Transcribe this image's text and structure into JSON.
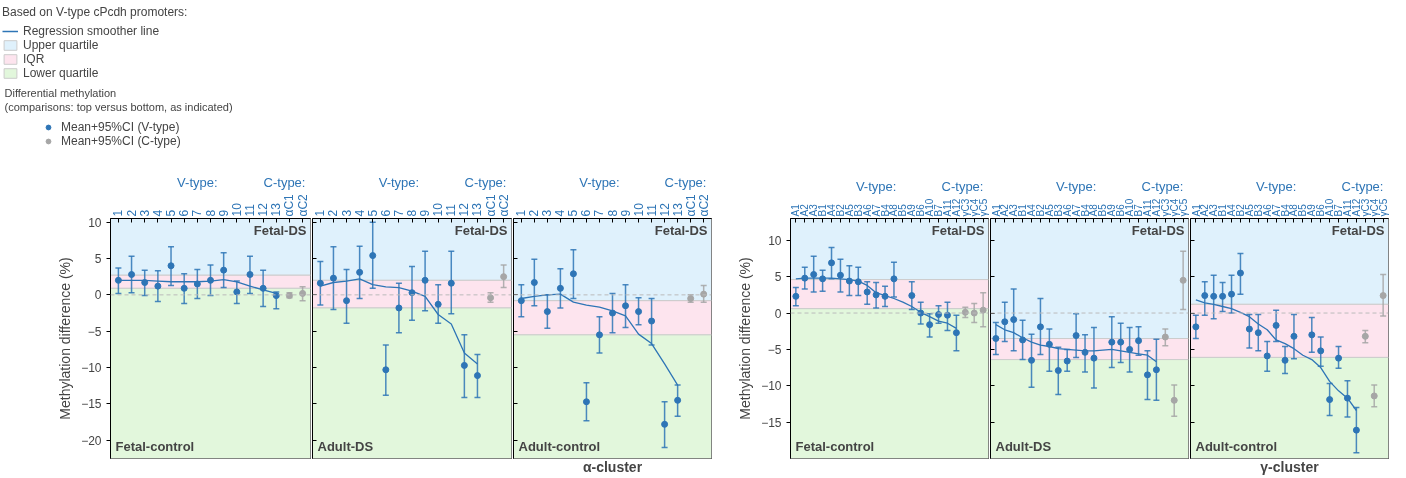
{
  "chart_data": [
    {
      "type": "scatter",
      "categories": [
        "1",
        "2",
        "3",
        "4",
        "5",
        "6",
        "7",
        "8",
        "9",
        "10",
        "11",
        "12",
        "13",
        "αC1",
        "αC2"
      ],
      "ylim": [
        -22.5,
        10.5
      ],
      "yticks": [
        10,
        5,
        0,
        -5,
        -10,
        -15,
        -20
      ],
      "ylabel": "Methylation difference (%)",
      "grid": false,
      "marker": "circle",
      "legend": "top left",
      "legend_title": "Based on V-type cPcdh promoters:",
      "annotations": [
        "Fetal-DS",
        "Fetal-control",
        "V-type:",
        "C-type:",
        "Differential methylation",
        "(comparisons: top versus bottom, as indicated)"
      ],
      "ref_lines": [
        {
          "axis": "y",
          "value": 0,
          "color": "#bbbbbb",
          "line_style": "dashed"
        }
      ],
      "bands": [
        {
          "axis": "y",
          "from": 2.7,
          "to": 10.5,
          "label": "Upper quartile",
          "color": "#dff1fc"
        },
        {
          "axis": "y",
          "from": 0.9,
          "to": 2.7,
          "label": "IQR",
          "color": "#fde4ee"
        },
        {
          "axis": "y",
          "from": -22.5,
          "to": 0.9,
          "label": "Lower quartile",
          "color": "#e2f7dc"
        }
      ],
      "series": [
        {
          "name": "Mean+95%CI (V-type)",
          "color": "#2e75b6",
          "values": [
            2.0,
            2.8,
            1.7,
            1.2,
            4.0,
            0.9,
            1.5,
            2.0,
            3.4,
            0.4,
            2.8,
            0.9,
            -0.1,
            null,
            null
          ],
          "errors": [
            [
              0.2,
              3.7
            ],
            [
              0.3,
              5.3
            ],
            [
              -0.1,
              3.4
            ],
            [
              -0.9,
              3.3
            ],
            [
              1.3,
              6.6
            ],
            [
              -1.2,
              2.9
            ],
            [
              -0.5,
              3.5
            ],
            [
              -0.1,
              4.1
            ],
            [
              1.0,
              5.8
            ],
            [
              -1.2,
              1.9
            ],
            [
              0.2,
              5.3
            ],
            [
              -1.6,
              3.4
            ],
            [
              -1.9,
              0.4
            ],
            null,
            null
          ]
        },
        {
          "name": "Mean+95%CI (C-type)",
          "color": "#a6a6a6",
          "values": [
            null,
            null,
            null,
            null,
            null,
            null,
            null,
            null,
            null,
            null,
            null,
            null,
            null,
            -0.1,
            0.2
          ],
          "errors": [
            null,
            null,
            null,
            null,
            null,
            null,
            null,
            null,
            null,
            null,
            null,
            null,
            null,
            [
              -0.4,
              0.3
            ],
            [
              -0.8,
              1.1
            ]
          ]
        },
        {
          "name": "Regression smoother line",
          "type": "line",
          "marker": "none",
          "color": "#2e75b6",
          "values": [
            2.0,
            2.0,
            2.0,
            1.9,
            1.8,
            1.8,
            1.8,
            1.9,
            2.1,
            1.8,
            1.2,
            0.7,
            0.2,
            null,
            null
          ]
        }
      ]
    },
    {
      "type": "scatter",
      "categories": [
        "1",
        "2",
        "3",
        "4",
        "5",
        "6",
        "7",
        "8",
        "9",
        "10",
        "11",
        "12",
        "13",
        "αC1",
        "αC2"
      ],
      "ylim": [
        -22.5,
        10.5
      ],
      "yticks": [
        10,
        5,
        0,
        -5,
        -10,
        -15,
        -20
      ],
      "tick_labels": "x",
      "grid": false,
      "marker": "circle",
      "annotations": [
        "Fetal-DS",
        "Adult-DS",
        "V-type:",
        "C-type:"
      ],
      "ref_lines": [
        {
          "axis": "y",
          "value": 0,
          "color": "#bbbbbb",
          "line_style": "dashed"
        }
      ],
      "bands": [
        {
          "axis": "y",
          "from": 2.0,
          "to": 10.5,
          "color": "#dff1fc"
        },
        {
          "axis": "y",
          "from": -1.8,
          "to": 2.0,
          "color": "#fde4ee"
        },
        {
          "axis": "y",
          "from": -22.5,
          "to": -1.8,
          "color": "#e2f7dc"
        }
      ],
      "series": [
        {
          "color": "#2e75b6",
          "values": [
            1.6,
            2.3,
            -0.8,
            3.1,
            5.4,
            -10.3,
            -1.8,
            0.3,
            2.0,
            -1.3,
            1.6,
            -9.7,
            -11.1,
            null,
            null
          ],
          "errors": [
            [
              -1.4,
              4.6
            ],
            [
              -2.0,
              6.6
            ],
            [
              -3.9,
              3.5
            ],
            [
              -0.5,
              6.7
            ],
            [
              0.9,
              10.0
            ],
            [
              -13.8,
              -6.9
            ],
            [
              -5.2,
              1.6
            ],
            [
              -3.5,
              3.9
            ],
            [
              -2.2,
              6.0
            ],
            [
              -3.9,
              1.4
            ],
            [
              -2.6,
              6.0
            ],
            [
              -14.1,
              -5.5
            ],
            [
              -14.1,
              -8.2
            ],
            null,
            null
          ]
        },
        {
          "color": "#a6a6a6",
          "values": [
            null,
            null,
            null,
            null,
            null,
            null,
            null,
            null,
            null,
            null,
            null,
            null,
            null,
            -0.4,
            2.5
          ],
          "errors": [
            null,
            null,
            null,
            null,
            null,
            null,
            null,
            null,
            null,
            null,
            null,
            null,
            null,
            [
              -1.0,
              0.3
            ],
            [
              1.0,
              4.1
            ]
          ]
        },
        {
          "type": "line",
          "marker": "none",
          "color": "#2e75b6",
          "values": [
            1.2,
            1.7,
            1.9,
            2.2,
            1.4,
            1.1,
            1.0,
            0.5,
            -0.2,
            -2.7,
            -4.0,
            -8.0,
            -9.5,
            null,
            null
          ]
        }
      ]
    },
    {
      "type": "scatter",
      "categories": [
        "1",
        "2",
        "3",
        "4",
        "5",
        "6",
        "7",
        "8",
        "9",
        "10",
        "11",
        "12",
        "13",
        "αC1",
        "αC2"
      ],
      "ylim": [
        -22.5,
        10.5
      ],
      "yticks": [
        10,
        5,
        0,
        -5,
        -10,
        -15,
        -20
      ],
      "tick_labels": "x",
      "grid": false,
      "marker": "circle",
      "xlabel": "α-cluster",
      "annotations": [
        "Fetal-DS",
        "Adult-control",
        "V-type:",
        "C-type:"
      ],
      "ref_lines": [
        {
          "axis": "y",
          "value": 0,
          "color": "#bbbbbb",
          "line_style": "dashed"
        }
      ],
      "bands": [
        {
          "axis": "y",
          "from": -0.8,
          "to": 10.5,
          "color": "#dff1fc"
        },
        {
          "axis": "y",
          "from": -5.5,
          "to": -0.8,
          "color": "#fde4ee"
        },
        {
          "axis": "y",
          "from": -22.5,
          "to": -5.5,
          "color": "#e2f7dc"
        }
      ],
      "series": [
        {
          "color": "#2e75b6",
          "values": [
            -0.8,
            1.7,
            -2.3,
            0.9,
            2.9,
            -14.7,
            -5.5,
            -2.5,
            -1.5,
            -2.3,
            -3.6,
            -17.8,
            -14.5,
            null,
            null
          ],
          "errors": [
            [
              -3.0,
              1.4
            ],
            [
              -1.5,
              4.9
            ],
            [
              -4.6,
              0.0
            ],
            [
              -1.8,
              3.6
            ],
            [
              -0.5,
              6.2
            ],
            [
              -17.3,
              -12.1
            ],
            [
              -8.0,
              -3.0
            ],
            [
              -5.2,
              0.2
            ],
            [
              -4.5,
              1.4
            ],
            [
              -4.1,
              -0.4
            ],
            [
              -6.9,
              -0.5
            ],
            [
              -21.0,
              -14.7
            ],
            [
              -16.7,
              -12.4
            ],
            null,
            null
          ]
        },
        {
          "color": "#a6a6a6",
          "values": [
            null,
            null,
            null,
            null,
            null,
            null,
            null,
            null,
            null,
            null,
            null,
            null,
            null,
            -0.5,
            0.1
          ],
          "errors": [
            null,
            null,
            null,
            null,
            null,
            null,
            null,
            null,
            null,
            null,
            null,
            null,
            null,
            [
              -1.0,
              0.0
            ],
            [
              -1.0,
              1.3
            ]
          ]
        },
        {
          "type": "line",
          "marker": "none",
          "color": "#2e75b6",
          "values": [
            -0.5,
            -0.2,
            0.0,
            0.1,
            -1.0,
            -1.4,
            -1.7,
            -2.2,
            -2.9,
            -5.4,
            -6.7,
            -9.5,
            -12.4,
            null,
            null
          ]
        }
      ]
    },
    {
      "type": "scatter",
      "categories": [
        "A1",
        "A2",
        "A3",
        "B1",
        "A4",
        "B2",
        "A5",
        "B3",
        "A6",
        "A7",
        "B4",
        "A8",
        "B5",
        "A9",
        "B6",
        "A10",
        "B7",
        "A11",
        "A12",
        "γC3",
        "γC4",
        "γC5"
      ],
      "ylim": [
        -20,
        13
      ],
      "yticks": [
        10,
        5,
        0,
        -5,
        -10,
        -15
      ],
      "ylabel": "Methylation difference (%)",
      "grid": false,
      "marker": "circle",
      "annotations": [
        "Fetal-DS",
        "Fetal-control",
        "V-type:",
        "C-type:"
      ],
      "ref_lines": [
        {
          "axis": "y",
          "value": 0,
          "color": "#bbbbbb",
          "line_style": "dashed"
        }
      ],
      "bands": [
        {
          "axis": "y",
          "from": 4.6,
          "to": 13,
          "color": "#dff1fc"
        },
        {
          "axis": "y",
          "from": 0.6,
          "to": 4.6,
          "color": "#fde4ee"
        },
        {
          "axis": "y",
          "from": -20,
          "to": 0.6,
          "color": "#e2f7dc"
        }
      ],
      "series": [
        {
          "color": "#2e75b6",
          "values": [
            2.3,
            4.8,
            5.3,
            4.7,
            6.9,
            5.2,
            4.4,
            4.3,
            2.9,
            2.5,
            2.3,
            4.7,
            null,
            2.4,
            0.0,
            -1.6,
            -0.2,
            -0.3,
            -2.7,
            null,
            null,
            null
          ],
          "errors": [
            [
              1.0,
              3.5
            ],
            [
              3.3,
              6.3
            ],
            [
              2.9,
              7.8
            ],
            [
              3.0,
              5.9
            ],
            [
              4.7,
              9.0
            ],
            [
              2.9,
              7.4
            ],
            [
              2.4,
              6.5
            ],
            [
              2.4,
              6.3
            ],
            [
              1.2,
              4.3
            ],
            [
              0.7,
              4.2
            ],
            [
              0.9,
              3.7
            ],
            [
              2.2,
              7.0
            ],
            null,
            [
              0.5,
              4.3
            ],
            [
              -1.5,
              1.5
            ],
            [
              -3.3,
              -0.1
            ],
            [
              -1.4,
              1.0
            ],
            [
              -2.4,
              1.5
            ],
            [
              -5.2,
              -0.3
            ],
            null,
            null,
            null
          ]
        },
        {
          "color": "#a6a6a6",
          "values": [
            null,
            null,
            null,
            null,
            null,
            null,
            null,
            null,
            null,
            null,
            null,
            null,
            null,
            null,
            null,
            null,
            null,
            null,
            null,
            0.1,
            0.0,
            0.4
          ],
          "errors": [
            null,
            null,
            null,
            null,
            null,
            null,
            null,
            null,
            null,
            null,
            null,
            null,
            null,
            null,
            null,
            null,
            null,
            null,
            null,
            [
              -0.6,
              0.8
            ],
            [
              -1.3,
              1.3
            ],
            [
              -1.9,
              2.8
            ]
          ]
        },
        {
          "type": "line",
          "marker": "none",
          "color": "#2e75b6",
          "values": [
            4.7,
            4.8,
            4.8,
            4.8,
            4.8,
            4.7,
            4.6,
            4.4,
            3.8,
            2.8,
            2.4,
            2.0,
            1.5,
            0.9,
            0.1,
            -0.5,
            -1.1,
            -1.4,
            -2.1,
            null,
            null,
            null
          ]
        }
      ]
    },
    {
      "type": "scatter",
      "categories": [
        "A1",
        "A2",
        "A3",
        "B1",
        "A4",
        "B2",
        "A5",
        "B3",
        "A6",
        "A7",
        "B4",
        "A8",
        "B5",
        "A9",
        "B6",
        "A10",
        "B7",
        "A11",
        "A12",
        "γC3",
        "γC4",
        "γC5"
      ],
      "ylim": [
        -20,
        13
      ],
      "yticks": [
        10,
        5,
        0,
        -5,
        -10,
        -15
      ],
      "tick_labels": "x",
      "grid": false,
      "marker": "circle",
      "annotations": [
        "Fetal-DS",
        "Adult-DS",
        "V-type:",
        "C-type:"
      ],
      "ref_lines": [
        {
          "axis": "y",
          "value": 0,
          "color": "#bbbbbb",
          "line_style": "dashed"
        }
      ],
      "bands": [
        {
          "axis": "y",
          "from": -3.5,
          "to": 13,
          "color": "#dff1fc"
        },
        {
          "axis": "y",
          "from": -6.4,
          "to": -3.5,
          "color": "#fde4ee"
        },
        {
          "axis": "y",
          "from": -20,
          "to": -6.4,
          "color": "#e2f7dc"
        }
      ],
      "series": [
        {
          "color": "#2e75b6",
          "values": [
            -3.5,
            -1.2,
            -0.9,
            -3.7,
            -6.5,
            -1.9,
            -4.3,
            -7.9,
            -6.6,
            -3.1,
            -5.4,
            -6.2,
            null,
            -4.0,
            -4.0,
            -5.0,
            -3.8,
            -8.5,
            -7.8,
            null,
            null,
            null
          ],
          "errors": [
            [
              -5.7,
              -1.3
            ],
            [
              -3.9,
              1.5
            ],
            [
              -5.2,
              3.3
            ],
            [
              -6.4,
              -1.0
            ],
            [
              -10.2,
              -2.9
            ],
            [
              -5.7,
              2.0
            ],
            [
              -8.0,
              -2.2
            ],
            [
              -11.2,
              -4.7
            ],
            [
              -8.0,
              -5.0
            ],
            [
              -6.1,
              -0.1
            ],
            [
              -8.1,
              -3.0
            ],
            [
              -10.3,
              -2.0
            ],
            null,
            [
              -7.5,
              -0.5
            ],
            [
              -6.8,
              -1.4
            ],
            [
              -8.1,
              -2.0
            ],
            [
              -5.8,
              -1.9
            ],
            [
              -11.9,
              -5.2
            ],
            [
              -12.0,
              -3.6
            ],
            null,
            null,
            null
          ]
        },
        {
          "color": "#a6a6a6",
          "values": [
            null,
            null,
            null,
            null,
            null,
            null,
            null,
            null,
            null,
            null,
            null,
            null,
            null,
            null,
            null,
            null,
            null,
            null,
            null,
            -3.3,
            -12.0,
            4.5
          ],
          "errors": [
            null,
            null,
            null,
            null,
            null,
            null,
            null,
            null,
            null,
            null,
            null,
            null,
            null,
            null,
            null,
            null,
            null,
            null,
            null,
            [
              -4.5,
              -2.2
            ],
            [
              -14.2,
              -9.9
            ],
            [
              0.5,
              8.5
            ]
          ]
        },
        {
          "type": "line",
          "marker": "none",
          "color": "#2e75b6",
          "values": [
            -1.6,
            -2.3,
            -2.7,
            -3.4,
            -4.0,
            -4.4,
            -4.6,
            -4.9,
            -5.0,
            -5.1,
            -5.2,
            -5.2,
            -5.1,
            -5.0,
            -5.2,
            -5.4,
            -5.6,
            -5.8,
            -6.7,
            null,
            null,
            null
          ]
        }
      ]
    },
    {
      "type": "scatter",
      "categories": [
        "A1",
        "A2",
        "A3",
        "B1",
        "A4",
        "B2",
        "A5",
        "B3",
        "A6",
        "A7",
        "B4",
        "A8",
        "B5",
        "A9",
        "B6",
        "A10",
        "B7",
        "A11",
        "A12",
        "γC3",
        "γC4",
        "γC5"
      ],
      "ylim": [
        -20,
        13
      ],
      "yticks": [
        10,
        5,
        0,
        -5,
        -10,
        -15
      ],
      "tick_labels": "x",
      "grid": false,
      "marker": "circle",
      "xlabel": "γ-cluster",
      "annotations": [
        "Fetal-DS",
        "Adult-control",
        "V-type:",
        "C-type:"
      ],
      "ref_lines": [
        {
          "axis": "y",
          "value": 0,
          "color": "#bbbbbb",
          "line_style": "dashed"
        }
      ],
      "bands": [
        {
          "axis": "y",
          "from": 1.2,
          "to": 13,
          "color": "#dff1fc"
        },
        {
          "axis": "y",
          "from": -6.1,
          "to": 1.2,
          "color": "#fde4ee"
        },
        {
          "axis": "y",
          "from": -20,
          "to": -6.1,
          "color": "#e2f7dc"
        }
      ],
      "series": [
        {
          "color": "#2e75b6",
          "values": [
            -1.9,
            2.4,
            2.3,
            2.3,
            2.6,
            5.5,
            -2.2,
            -2.7,
            -5.9,
            -1.7,
            -6.5,
            -3.2,
            null,
            -3.0,
            -5.2,
            -11.9,
            -6.2,
            -11.7,
            -16.1,
            null,
            null,
            null
          ],
          "errors": [
            [
              -3.5,
              -0.3
            ],
            [
              -0.3,
              4.3
            ],
            [
              -0.8,
              5.2
            ],
            [
              0.2,
              4.2
            ],
            [
              0.0,
              5.2
            ],
            [
              2.6,
              8.2
            ],
            [
              -4.8,
              -0.2
            ],
            [
              -5.2,
              -0.2
            ],
            [
              -8.0,
              -3.9
            ],
            [
              -3.9,
              0.4
            ],
            [
              -8.3,
              -4.6
            ],
            [
              -6.3,
              -0.2
            ],
            null,
            [
              -5.4,
              -0.6
            ],
            [
              -7.3,
              -3.3
            ],
            [
              -14.1,
              -9.7
            ],
            [
              -7.6,
              -4.6
            ],
            [
              -14.3,
              -9.3
            ],
            [
              -19.2,
              -13.0
            ],
            null,
            null,
            null
          ]
        },
        {
          "color": "#a6a6a6",
          "values": [
            null,
            null,
            null,
            null,
            null,
            null,
            null,
            null,
            null,
            null,
            null,
            null,
            null,
            null,
            null,
            null,
            null,
            null,
            null,
            -3.2,
            -11.4,
            2.4
          ],
          "errors": [
            null,
            null,
            null,
            null,
            null,
            null,
            null,
            null,
            null,
            null,
            null,
            null,
            null,
            null,
            null,
            null,
            null,
            null,
            null,
            [
              -4.1,
              -2.4
            ],
            [
              -12.9,
              -9.9
            ],
            [
              -0.4,
              5.3
            ]
          ]
        },
        {
          "type": "line",
          "marker": "none",
          "color": "#2e75b6",
          "values": [
            1.8,
            1.4,
            1.2,
            0.9,
            0.6,
            0.1,
            -0.5,
            -1.5,
            -2.3,
            -3.7,
            -4.2,
            -4.9,
            -5.8,
            -6.4,
            -7.5,
            -9.4,
            -10.7,
            -11.7,
            -13.4,
            null,
            null,
            null
          ]
        }
      ]
    }
  ]
}
